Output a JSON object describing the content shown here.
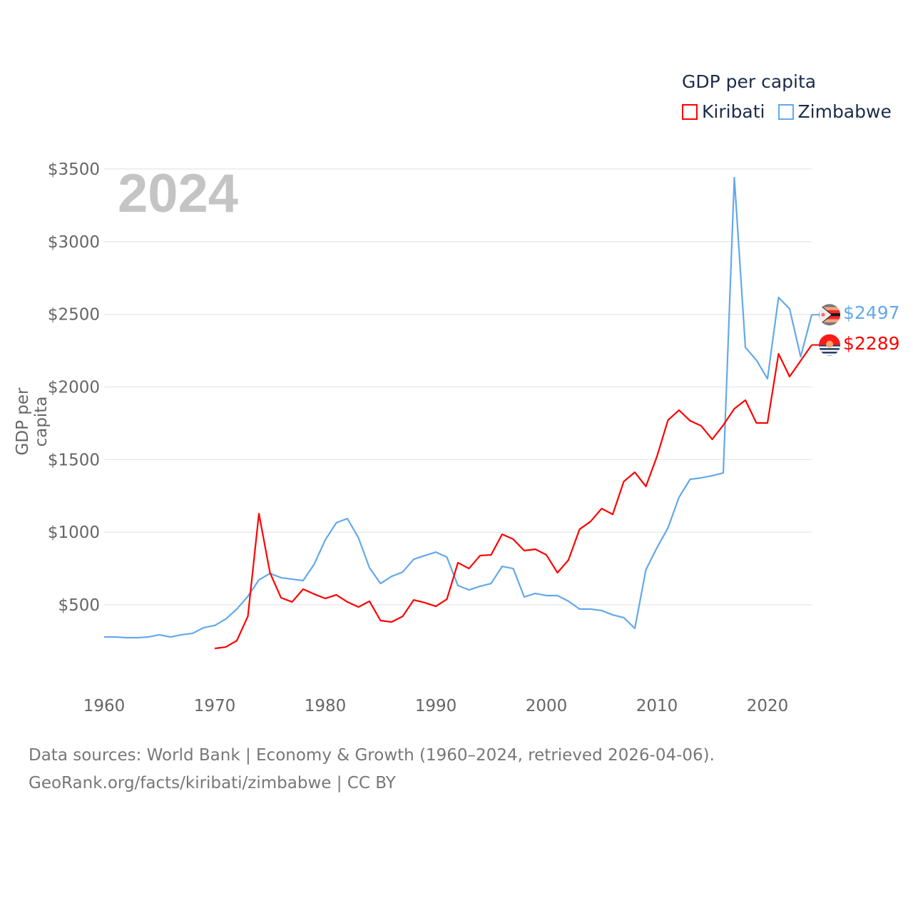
{
  "chart_data": {
    "type": "line",
    "title": "GDP per capita",
    "watermark_year": "2024",
    "xlabel": "",
    "ylabel": "GDP per capita",
    "xlim": [
      1960,
      2024
    ],
    "ylim": [
      0,
      3500
    ],
    "x_ticks": [
      "1960",
      "1970",
      "1980",
      "1990",
      "2000",
      "2010",
      "2020"
    ],
    "y_ticks": [
      "$500",
      "$1000",
      "$1500",
      "$2000",
      "$2500",
      "$3000",
      "$3500"
    ],
    "grid": true,
    "legend_position": "top-right",
    "series": [
      {
        "name": "Kiribati",
        "color": "#ff0000",
        "start_year": 1970,
        "end_label": "$2289",
        "values": [
          200,
          210,
          254,
          421,
          1128,
          721,
          549,
          520,
          608,
          574,
          544,
          569,
          520,
          485,
          525,
          392,
          382,
          421,
          534,
          515,
          490,
          539,
          790,
          750,
          839,
          844,
          986,
          952,
          873,
          883,
          844,
          721,
          809,
          1020,
          1074,
          1163,
          1123,
          1349,
          1413,
          1315,
          1521,
          1771,
          1840,
          1767,
          1732,
          1639,
          1737,
          1850,
          1909,
          1752,
          1752,
          2228,
          2071,
          2180,
          2289
        ]
      },
      {
        "name": "Zimbabwe",
        "color": "#64a8ea",
        "start_year": 1960,
        "end_label": "$2497",
        "values": [
          279,
          279,
          274,
          274,
          279,
          294,
          279,
          294,
          304,
          343,
          358,
          402,
          471,
          559,
          672,
          716,
          687,
          677,
          667,
          780,
          947,
          1065,
          1094,
          962,
          755,
          647,
          696,
          726,
          814,
          839,
          863,
          829,
          633,
          603,
          628,
          647,
          765,
          750,
          554,
          579,
          564,
          564,
          525,
          471,
          471,
          461,
          431,
          412,
          338,
          741,
          893,
          1030,
          1241,
          1364,
          1374,
          1389,
          1408,
          3441,
          2272,
          2184,
          2056,
          2616,
          2537,
          2208,
          2497
        ]
      }
    ]
  },
  "footer": {
    "line1": "Data sources: World Bank | Economy & Growth (1960–2024, retrieved 2026-04-06).",
    "line2": "GeoRank.org/facts/kiribati/zimbabwe | CC BY"
  }
}
